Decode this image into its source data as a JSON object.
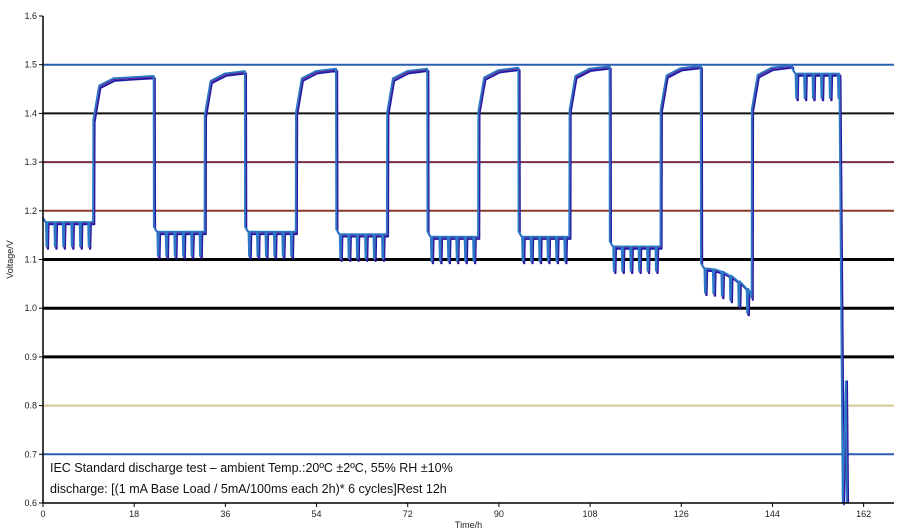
{
  "chart_data": {
    "type": "line",
    "xlabel": "Time/h",
    "ylabel": "Voltage/V",
    "xlim": [
      0,
      168
    ],
    "ylim": [
      0.6,
      1.6
    ],
    "x_ticks": [
      0,
      18,
      36,
      54,
      72,
      90,
      108,
      126,
      144,
      162
    ],
    "y_ticks": [
      0.6,
      0.7,
      0.8,
      0.9,
      1.0,
      1.1,
      1.2,
      1.3,
      1.4,
      1.5,
      1.6
    ],
    "grid": "horizontal",
    "cycles_per_block": 6,
    "pulse_drop_v": 0.05,
    "blocks": [
      {
        "start": 0,
        "end": 10,
        "load_v": 1.175,
        "rest_v": 1.475
      },
      {
        "start": 22,
        "end": 32,
        "load_v": 1.155,
        "rest_v": 1.485
      },
      {
        "start": 40,
        "end": 50,
        "load_v": 1.155,
        "rest_v": 1.49
      },
      {
        "start": 58,
        "end": 68,
        "load_v": 1.15,
        "rest_v": 1.49
      },
      {
        "start": 76,
        "end": 86,
        "load_v": 1.145,
        "rest_v": 1.492
      },
      {
        "start": 94,
        "end": 104,
        "load_v": 1.145,
        "rest_v": 1.495
      },
      {
        "start": 112,
        "end": 122,
        "load_v": 1.125,
        "rest_v": 1.496
      },
      {
        "start": 130,
        "end": 140,
        "load_v": 1.08,
        "rest_v": 1.497,
        "end_v": 1.02
      },
      {
        "start": 148,
        "end": 158,
        "load_v": 1.48,
        "rest_v": 1.497,
        "end_v": 0.6
      }
    ],
    "reference_lines": [
      {
        "y": 1.5,
        "color": "#2a5fb0"
      },
      {
        "y": 1.4,
        "color": "#111111"
      },
      {
        "y": 1.3,
        "color": "#7a2a4a"
      },
      {
        "y": 1.2,
        "color": "#8a3a2a"
      },
      {
        "y": 1.1,
        "color": "#000000"
      },
      {
        "y": 1.0,
        "color": "#000000"
      },
      {
        "y": 0.9,
        "color": "#000000"
      },
      {
        "y": 0.8,
        "color": "#d8c890"
      },
      {
        "y": 0.7,
        "color": "#2a5fb0"
      }
    ],
    "series_colors": [
      "#1a1aa8",
      "#6a1a8a",
      "#2a78c8"
    ],
    "annotations": [
      "IEC Standard discharge test – ambient Temp.:20ºC ±2ºC, 55% RH ±10%",
      "discharge: [(1 mA Base Load / 5mA/100ms each 2h)* 6 cycles]Rest 12h"
    ]
  }
}
